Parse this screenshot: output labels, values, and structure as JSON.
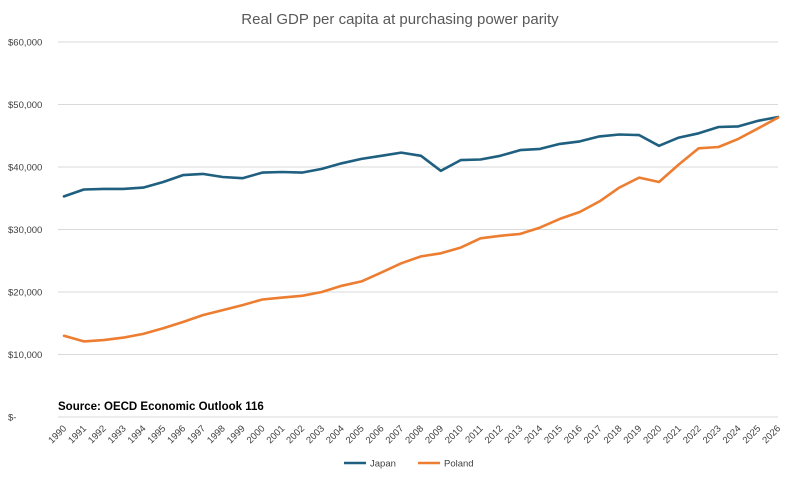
{
  "chart_data": {
    "type": "line",
    "title": "Real GDP per capita at purchasing power parity",
    "xlabel": "",
    "ylabel": "",
    "ylim": [
      0,
      60000
    ],
    "y_ticks": [
      "$-",
      "$10,000",
      "$20,000",
      "$30,000",
      "$40,000",
      "$50,000",
      "$60,000"
    ],
    "y_tick_values": [
      0,
      10000,
      20000,
      30000,
      40000,
      50000,
      60000
    ],
    "grid": true,
    "legend_position": "bottom",
    "annotation": "Source: OECD Economic Outlook 116",
    "categories": [
      "1990",
      "1991",
      "1992",
      "1993",
      "1994",
      "1995",
      "1996",
      "1997",
      "1998",
      "1999",
      "2000",
      "2001",
      "2002",
      "2003",
      "2004",
      "2005",
      "2006",
      "2007",
      "2008",
      "2009",
      "2010",
      "2011",
      "2012",
      "2013",
      "2014",
      "2015",
      "2016",
      "2017",
      "2018",
      "2019",
      "2020",
      "2021",
      "2022",
      "2023",
      "2024",
      "2025",
      "2026"
    ],
    "series": [
      {
        "name": "Japan",
        "color": "#1f5f7f",
        "values": [
          35300,
          36400,
          36500,
          36500,
          36700,
          37600,
          38700,
          38900,
          38400,
          38200,
          39100,
          39200,
          39100,
          39700,
          40600,
          41300,
          41800,
          42300,
          41800,
          39400,
          41100,
          41200,
          41800,
          42700,
          42900,
          43700,
          44100,
          44900,
          45200,
          45100,
          43400,
          44700,
          45400,
          46400,
          46500,
          47400,
          48000
        ]
      },
      {
        "name": "Poland",
        "color": "#ed7d31",
        "values": [
          13000,
          12100,
          12300,
          12700,
          13300,
          14200,
          15200,
          16300,
          17100,
          17900,
          18800,
          19100,
          19400,
          20000,
          21000,
          21700,
          23100,
          24600,
          25700,
          26200,
          27100,
          28600,
          29000,
          29300,
          30300,
          31700,
          32800,
          34500,
          36700,
          38300,
          37600,
          40400,
          43000,
          43200,
          44500,
          46200,
          47900
        ]
      }
    ]
  }
}
